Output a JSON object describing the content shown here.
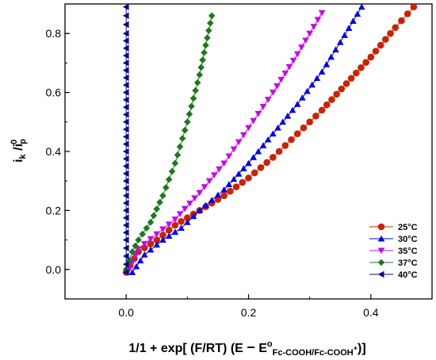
{
  "chart_data": {
    "type": "line",
    "title": "",
    "xlabel": {
      "prefix": "1/1 + exp[ (F/RT) (E ",
      "minus": "−",
      "e": " E",
      "sup": "o",
      "sub": "Fc-COOH/Fc-COOH",
      "sub_sup": "+",
      "suffix": ")]"
    },
    "ylabel": {
      "i": "i",
      "i_sub": "k",
      "slash": " /i",
      "sup": "0",
      "sub": "p"
    },
    "xlim": [
      -0.1,
      0.5
    ],
    "ylim": [
      -0.1,
      0.9
    ],
    "x_ticks": [
      0.0,
      0.2,
      0.4
    ],
    "x_tick_labels": [
      "0.0",
      "0.2",
      "0.4"
    ],
    "y_ticks": [
      0.0,
      0.2,
      0.4,
      0.6,
      0.8
    ],
    "y_tick_labels": [
      "0.0",
      "0.2",
      "0.4",
      "0.6",
      "0.8"
    ],
    "grid": false,
    "legend_position": "bottom-right",
    "series": [
      {
        "name": "25°C",
        "color": "#cc2200",
        "marker": "circle",
        "points": [
          [
            0.0,
            -0.01
          ],
          [
            0.02,
            0.06
          ],
          [
            0.05,
            0.1
          ],
          [
            0.08,
            0.15
          ],
          [
            0.12,
            0.2
          ],
          [
            0.16,
            0.25
          ],
          [
            0.2,
            0.31
          ],
          [
            0.24,
            0.38
          ],
          [
            0.28,
            0.46
          ],
          [
            0.32,
            0.54
          ],
          [
            0.36,
            0.63
          ],
          [
            0.4,
            0.72
          ],
          [
            0.44,
            0.82
          ],
          [
            0.47,
            0.89
          ]
        ]
      },
      {
        "name": "30°C",
        "color": "#0000ee",
        "marker": "triangle-up",
        "points": [
          [
            0.01,
            -0.01
          ],
          [
            0.03,
            0.05
          ],
          [
            0.06,
            0.1
          ],
          [
            0.09,
            0.14
          ],
          [
            0.12,
            0.2
          ],
          [
            0.16,
            0.27
          ],
          [
            0.2,
            0.36
          ],
          [
            0.24,
            0.46
          ],
          [
            0.28,
            0.56
          ],
          [
            0.32,
            0.67
          ],
          [
            0.35,
            0.77
          ],
          [
            0.385,
            0.89
          ]
        ]
      },
      {
        "name": "35°C",
        "color": "#cc00ee",
        "marker": "triangle-down",
        "points": [
          [
            0.005,
            0.0
          ],
          [
            0.02,
            0.07
          ],
          [
            0.05,
            0.12
          ],
          [
            0.08,
            0.17
          ],
          [
            0.12,
            0.26
          ],
          [
            0.16,
            0.36
          ],
          [
            0.2,
            0.48
          ],
          [
            0.24,
            0.6
          ],
          [
            0.28,
            0.73
          ],
          [
            0.32,
            0.87
          ]
        ]
      },
      {
        "name": "37°C",
        "color": "#1a7a1a",
        "marker": "diamond",
        "points": [
          [
            0.0,
            0.0
          ],
          [
            0.01,
            0.06
          ],
          [
            0.02,
            0.1
          ],
          [
            0.04,
            0.16
          ],
          [
            0.06,
            0.25
          ],
          [
            0.08,
            0.36
          ],
          [
            0.1,
            0.5
          ],
          [
            0.12,
            0.66
          ],
          [
            0.14,
            0.86
          ]
        ]
      },
      {
        "name": "40°C",
        "color": "#0a0a8c",
        "marker": "triangle-left",
        "points": [
          [
            0.0,
            -0.01
          ],
          [
            0.0,
            0.1
          ],
          [
            0.0,
            0.2
          ],
          [
            0.0,
            0.3
          ],
          [
            0.0,
            0.4
          ],
          [
            0.0,
            0.5
          ],
          [
            0.0,
            0.6
          ],
          [
            0.0,
            0.7
          ],
          [
            0.0,
            0.8
          ],
          [
            0.0,
            0.89
          ]
        ]
      }
    ]
  }
}
